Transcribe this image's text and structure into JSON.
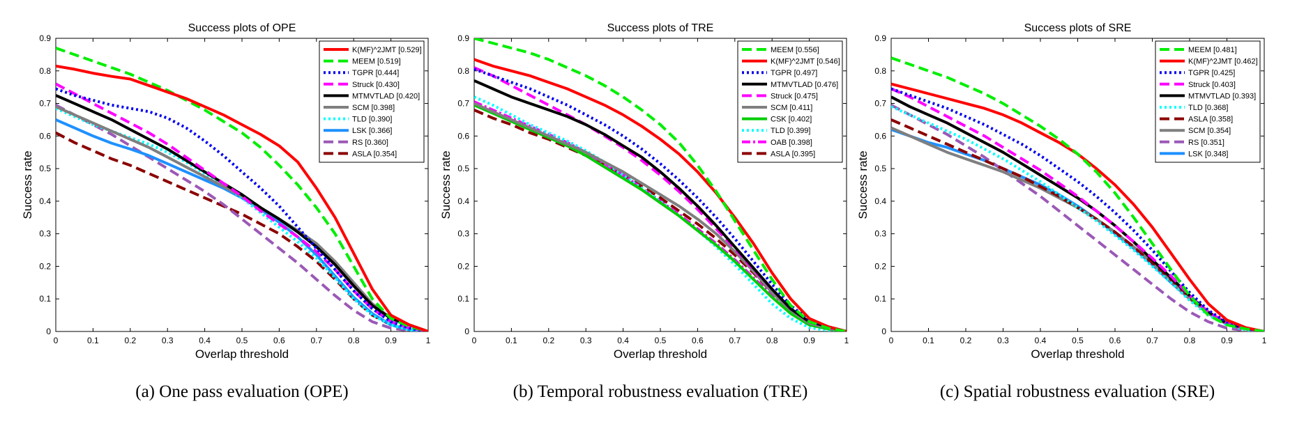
{
  "chart_data": [
    {
      "type": "line",
      "title": "Success plots of OPE",
      "xlabel": "Overlap threshold",
      "ylabel": "Success rate",
      "caption": "(a)  One pass evaluation (OPE)",
      "xlim": [
        0,
        1
      ],
      "ylim": [
        0,
        0.9
      ],
      "xticks": [
        "0",
        "0.1",
        "0.2",
        "0.3",
        "0.4",
        "0.5",
        "0.6",
        "0.7",
        "0.8",
        "0.9",
        "1"
      ],
      "yticks": [
        "0",
        "0.1",
        "0.2",
        "0.3",
        "0.4",
        "0.5",
        "0.6",
        "0.7",
        "0.8",
        "0.9"
      ],
      "legend_position": "top-right",
      "x": [
        0,
        0.05,
        0.1,
        0.15,
        0.2,
        0.25,
        0.3,
        0.35,
        0.4,
        0.45,
        0.5,
        0.55,
        0.6,
        0.65,
        0.7,
        0.75,
        0.8,
        0.85,
        0.9,
        0.95,
        1
      ],
      "series": [
        {
          "name": "K(MF)^2JMT [0.529]",
          "color": "#ff0000",
          "dash": "solid",
          "values": [
            0.815,
            0.805,
            0.793,
            0.783,
            0.775,
            0.755,
            0.735,
            0.715,
            0.69,
            0.665,
            0.635,
            0.605,
            0.57,
            0.52,
            0.44,
            0.35,
            0.24,
            0.13,
            0.05,
            0.02,
            0.0
          ]
        },
        {
          "name": "MEEM [0.519]",
          "color": "#00ee00",
          "dash": "dash",
          "values": [
            0.87,
            0.85,
            0.83,
            0.81,
            0.79,
            0.765,
            0.74,
            0.71,
            0.68,
            0.645,
            0.61,
            0.565,
            0.51,
            0.45,
            0.38,
            0.3,
            0.2,
            0.1,
            0.04,
            0.015,
            0.0
          ]
        },
        {
          "name": "TGPR [0.444]",
          "color": "#0000ee",
          "dash": "dot",
          "values": [
            0.745,
            0.725,
            0.71,
            0.695,
            0.685,
            0.675,
            0.655,
            0.625,
            0.585,
            0.54,
            0.49,
            0.44,
            0.385,
            0.32,
            0.255,
            0.19,
            0.125,
            0.07,
            0.03,
            0.01,
            0.0
          ]
        },
        {
          "name": "Struck [0.430]",
          "color": "#ff00ff",
          "dash": "dash",
          "values": [
            0.76,
            0.73,
            0.7,
            0.67,
            0.64,
            0.61,
            0.575,
            0.535,
            0.495,
            0.455,
            0.415,
            0.37,
            0.33,
            0.29,
            0.245,
            0.19,
            0.125,
            0.07,
            0.03,
            0.01,
            0.0
          ]
        },
        {
          "name": "MTMVTLAD [0.420]",
          "color": "#000000",
          "dash": "solid",
          "values": [
            0.725,
            0.7,
            0.675,
            0.65,
            0.62,
            0.59,
            0.56,
            0.525,
            0.49,
            0.455,
            0.42,
            0.38,
            0.345,
            0.305,
            0.26,
            0.205,
            0.14,
            0.08,
            0.04,
            0.02,
            0.0
          ]
        },
        {
          "name": "SCM [0.398]",
          "color": "#7f7f7f",
          "dash": "solid",
          "values": [
            0.69,
            0.665,
            0.64,
            0.615,
            0.59,
            0.565,
            0.535,
            0.505,
            0.475,
            0.445,
            0.415,
            0.38,
            0.345,
            0.31,
            0.27,
            0.215,
            0.15,
            0.085,
            0.04,
            0.02,
            0.0
          ]
        },
        {
          "name": "TLD [0.390]",
          "color": "#00ffff",
          "dash": "dot",
          "values": [
            0.685,
            0.66,
            0.635,
            0.615,
            0.595,
            0.575,
            0.55,
            0.52,
            0.485,
            0.45,
            0.41,
            0.365,
            0.32,
            0.275,
            0.225,
            0.165,
            0.1,
            0.05,
            0.02,
            0.005,
            0.0
          ]
        },
        {
          "name": "LSK [0.366]",
          "color": "#1e90ff",
          "dash": "solid",
          "values": [
            0.65,
            0.625,
            0.6,
            0.578,
            0.56,
            0.54,
            0.515,
            0.49,
            0.465,
            0.44,
            0.41,
            0.375,
            0.335,
            0.29,
            0.235,
            0.17,
            0.105,
            0.055,
            0.02,
            0.005,
            0.0
          ]
        },
        {
          "name": "RS [0.360]",
          "color": "#9b59b6",
          "dash": "dash",
          "values": [
            0.695,
            0.665,
            0.635,
            0.605,
            0.57,
            0.535,
            0.5,
            0.465,
            0.43,
            0.39,
            0.345,
            0.3,
            0.255,
            0.21,
            0.16,
            0.11,
            0.065,
            0.03,
            0.01,
            0.003,
            0.0
          ]
        },
        {
          "name": "ASLA [0.354]",
          "color": "#8b0000",
          "dash": "dash",
          "values": [
            0.61,
            0.58,
            0.555,
            0.53,
            0.51,
            0.485,
            0.46,
            0.435,
            0.41,
            0.385,
            0.36,
            0.33,
            0.3,
            0.26,
            0.215,
            0.16,
            0.1,
            0.05,
            0.02,
            0.005,
            0.0
          ]
        }
      ]
    },
    {
      "type": "line",
      "title": "Success plots of TRE",
      "xlabel": "Overlap threshold",
      "ylabel": "Success rate",
      "caption": "(b)  Temporal robustness evaluation (TRE)",
      "xlim": [
        0,
        1
      ],
      "ylim": [
        0,
        0.9
      ],
      "xticks": [
        "0",
        "0.1",
        "0.2",
        "0.3",
        "0.4",
        "0.5",
        "0.6",
        "0.7",
        "0.8",
        "0.9",
        "1"
      ],
      "yticks": [
        "0",
        "0.1",
        "0.2",
        "0.3",
        "0.4",
        "0.5",
        "0.6",
        "0.7",
        "0.8",
        "0.9"
      ],
      "legend_position": "top-right",
      "x": [
        0,
        0.05,
        0.1,
        0.15,
        0.2,
        0.25,
        0.3,
        0.35,
        0.4,
        0.45,
        0.5,
        0.55,
        0.6,
        0.65,
        0.7,
        0.75,
        0.8,
        0.85,
        0.9,
        0.95,
        1
      ],
      "series": [
        {
          "name": "MEEM [0.556]",
          "color": "#00ee00",
          "dash": "dash",
          "values": [
            0.9,
            0.885,
            0.87,
            0.855,
            0.835,
            0.81,
            0.785,
            0.755,
            0.72,
            0.68,
            0.635,
            0.58,
            0.51,
            0.43,
            0.34,
            0.25,
            0.16,
            0.08,
            0.03,
            0.01,
            0.0
          ]
        },
        {
          "name": "K(MF)^2JMT [0.546]",
          "color": "#ff0000",
          "dash": "solid",
          "values": [
            0.835,
            0.815,
            0.8,
            0.785,
            0.765,
            0.745,
            0.72,
            0.695,
            0.665,
            0.63,
            0.59,
            0.545,
            0.49,
            0.425,
            0.35,
            0.27,
            0.18,
            0.1,
            0.04,
            0.015,
            0.0
          ]
        },
        {
          "name": "TGPR [0.497]",
          "color": "#0000ee",
          "dash": "dot",
          "values": [
            0.805,
            0.785,
            0.765,
            0.745,
            0.72,
            0.695,
            0.665,
            0.635,
            0.6,
            0.56,
            0.515,
            0.465,
            0.41,
            0.35,
            0.285,
            0.215,
            0.145,
            0.08,
            0.035,
            0.015,
            0.0
          ]
        },
        {
          "name": "MTMVTLAD [0.476]",
          "color": "#000000",
          "dash": "solid",
          "values": [
            0.77,
            0.745,
            0.72,
            0.7,
            0.68,
            0.66,
            0.635,
            0.605,
            0.57,
            0.535,
            0.49,
            0.44,
            0.385,
            0.325,
            0.26,
            0.195,
            0.13,
            0.07,
            0.03,
            0.015,
            0.0
          ]
        },
        {
          "name": "Struck [0.475]",
          "color": "#ff00ff",
          "dash": "dash",
          "values": [
            0.81,
            0.785,
            0.755,
            0.725,
            0.695,
            0.665,
            0.635,
            0.6,
            0.565,
            0.525,
            0.48,
            0.43,
            0.375,
            0.315,
            0.255,
            0.19,
            0.13,
            0.07,
            0.03,
            0.01,
            0.0
          ]
        },
        {
          "name": "SCM [0.411]",
          "color": "#7f7f7f",
          "dash": "solid",
          "values": [
            0.7,
            0.675,
            0.65,
            0.625,
            0.6,
            0.575,
            0.55,
            0.52,
            0.49,
            0.455,
            0.42,
            0.385,
            0.345,
            0.3,
            0.245,
            0.185,
            0.12,
            0.065,
            0.025,
            0.01,
            0.0
          ]
        },
        {
          "name": "CSK [0.402]",
          "color": "#00cc00",
          "dash": "solid",
          "values": [
            0.695,
            0.67,
            0.645,
            0.62,
            0.595,
            0.57,
            0.54,
            0.505,
            0.47,
            0.435,
            0.395,
            0.355,
            0.31,
            0.265,
            0.215,
            0.16,
            0.105,
            0.055,
            0.02,
            0.008,
            0.0
          ]
        },
        {
          "name": "TLD [0.399]",
          "color": "#00ffff",
          "dash": "dot",
          "values": [
            0.72,
            0.695,
            0.665,
            0.635,
            0.61,
            0.585,
            0.555,
            0.52,
            0.48,
            0.44,
            0.4,
            0.355,
            0.31,
            0.26,
            0.205,
            0.145,
            0.085,
            0.04,
            0.012,
            0.003,
            0.0
          ]
        },
        {
          "name": "OAB [0.398]",
          "color": "#ff00ff",
          "dash": "dashdot",
          "values": [
            0.705,
            0.68,
            0.655,
            0.63,
            0.605,
            0.58,
            0.55,
            0.515,
            0.48,
            0.44,
            0.4,
            0.36,
            0.315,
            0.27,
            0.22,
            0.165,
            0.11,
            0.06,
            0.025,
            0.01,
            0.0
          ]
        },
        {
          "name": "ASLA [0.395]",
          "color": "#8b0000",
          "dash": "dash",
          "values": [
            0.68,
            0.655,
            0.635,
            0.61,
            0.59,
            0.565,
            0.54,
            0.51,
            0.48,
            0.445,
            0.41,
            0.37,
            0.33,
            0.285,
            0.235,
            0.18,
            0.12,
            0.065,
            0.025,
            0.01,
            0.0
          ]
        }
      ]
    },
    {
      "type": "line",
      "title": "Success plots of SRE",
      "xlabel": "Overlap threshold",
      "ylabel": "Success rate",
      "caption": "(c)  Spatial robustness evaluation (SRE)",
      "xlim": [
        0,
        1
      ],
      "ylim": [
        0,
        0.9
      ],
      "xticks": [
        "0",
        "0.1",
        "0.2",
        "0.3",
        "0.4",
        "0.5",
        "0.6",
        "0.7",
        "0.8",
        "0.9",
        "1"
      ],
      "yticks": [
        "0",
        "0.1",
        "0.2",
        "0.3",
        "0.4",
        "0.5",
        "0.6",
        "0.7",
        "0.8",
        "0.9"
      ],
      "legend_position": "top-right",
      "x": [
        0,
        0.05,
        0.1,
        0.15,
        0.2,
        0.25,
        0.3,
        0.35,
        0.4,
        0.45,
        0.5,
        0.55,
        0.6,
        0.65,
        0.7,
        0.75,
        0.8,
        0.85,
        0.9,
        0.95,
        1
      ],
      "series": [
        {
          "name": "MEEM [0.481]",
          "color": "#00ee00",
          "dash": "dash",
          "values": [
            0.84,
            0.82,
            0.8,
            0.78,
            0.755,
            0.73,
            0.7,
            0.665,
            0.63,
            0.59,
            0.545,
            0.49,
            0.425,
            0.35,
            0.27,
            0.19,
            0.11,
            0.05,
            0.02,
            0.008,
            0.0
          ]
        },
        {
          "name": "K(MF)^2JMT [0.462]",
          "color": "#ff0000",
          "dash": "solid",
          "values": [
            0.76,
            0.745,
            0.73,
            0.715,
            0.7,
            0.685,
            0.665,
            0.64,
            0.61,
            0.58,
            0.545,
            0.5,
            0.45,
            0.39,
            0.32,
            0.24,
            0.16,
            0.085,
            0.035,
            0.012,
            0.0
          ]
        },
        {
          "name": "TGPR [0.425]",
          "color": "#0000ee",
          "dash": "dot",
          "values": [
            0.745,
            0.725,
            0.705,
            0.685,
            0.66,
            0.635,
            0.605,
            0.575,
            0.54,
            0.5,
            0.46,
            0.415,
            0.365,
            0.31,
            0.25,
            0.185,
            0.12,
            0.065,
            0.028,
            0.01,
            0.0
          ]
        },
        {
          "name": "Struck [0.403]",
          "color": "#ff00ff",
          "dash": "dash",
          "values": [
            0.745,
            0.72,
            0.69,
            0.66,
            0.63,
            0.6,
            0.565,
            0.53,
            0.495,
            0.455,
            0.415,
            0.37,
            0.325,
            0.275,
            0.225,
            0.17,
            0.11,
            0.06,
            0.025,
            0.008,
            0.0
          ]
        },
        {
          "name": "MTMVTLAD [0.393]",
          "color": "#000000",
          "dash": "solid",
          "values": [
            0.72,
            0.69,
            0.665,
            0.64,
            0.61,
            0.58,
            0.55,
            0.515,
            0.48,
            0.445,
            0.41,
            0.37,
            0.325,
            0.275,
            0.22,
            0.165,
            0.11,
            0.06,
            0.025,
            0.01,
            0.0
          ]
        },
        {
          "name": "TLD [0.368]",
          "color": "#00ffff",
          "dash": "dot",
          "values": [
            0.69,
            0.665,
            0.64,
            0.615,
            0.59,
            0.56,
            0.53,
            0.495,
            0.46,
            0.42,
            0.38,
            0.34,
            0.295,
            0.25,
            0.2,
            0.15,
            0.095,
            0.05,
            0.02,
            0.005,
            0.0
          ]
        },
        {
          "name": "ASLA [0.358]",
          "color": "#8b0000",
          "dash": "dash",
          "values": [
            0.65,
            0.625,
            0.6,
            0.575,
            0.55,
            0.525,
            0.5,
            0.475,
            0.445,
            0.415,
            0.38,
            0.345,
            0.305,
            0.26,
            0.21,
            0.16,
            0.105,
            0.055,
            0.022,
            0.008,
            0.0
          ]
        },
        {
          "name": "SCM [0.354]",
          "color": "#7f7f7f",
          "dash": "solid",
          "values": [
            0.625,
            0.6,
            0.575,
            0.55,
            0.53,
            0.51,
            0.49,
            0.465,
            0.44,
            0.41,
            0.38,
            0.345,
            0.305,
            0.26,
            0.21,
            0.155,
            0.1,
            0.055,
            0.022,
            0.008,
            0.0
          ]
        },
        {
          "name": "RS [0.351]",
          "color": "#9b59b6",
          "dash": "dash",
          "values": [
            0.695,
            0.665,
            0.635,
            0.605,
            0.57,
            0.535,
            0.495,
            0.455,
            0.415,
            0.37,
            0.325,
            0.28,
            0.235,
            0.19,
            0.145,
            0.1,
            0.06,
            0.03,
            0.01,
            0.003,
            0.0
          ]
        },
        {
          "name": "LSK [0.348]",
          "color": "#1e90ff",
          "dash": "solid",
          "values": [
            0.62,
            0.6,
            0.58,
            0.565,
            0.545,
            0.525,
            0.5,
            0.475,
            0.45,
            0.42,
            0.385,
            0.345,
            0.3,
            0.255,
            0.205,
            0.15,
            0.1,
            0.055,
            0.022,
            0.008,
            0.0
          ]
        }
      ]
    }
  ]
}
